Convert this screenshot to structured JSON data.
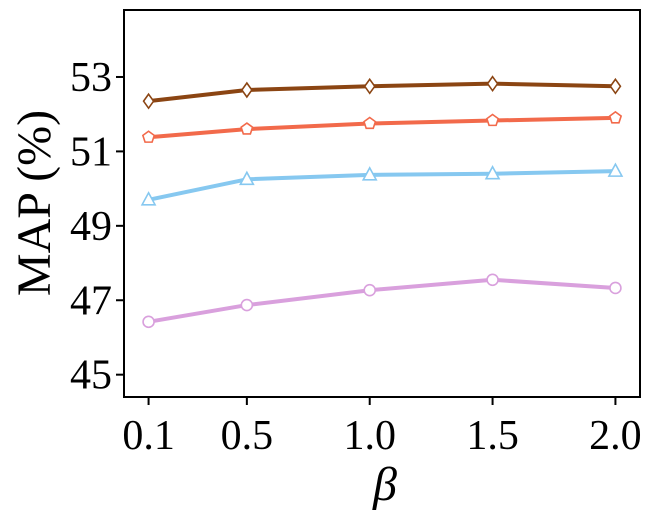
{
  "chart_data": {
    "type": "line",
    "xlabel": "β",
    "ylabel": "MAP (%)",
    "x": [
      0.1,
      0.5,
      1.0,
      1.5,
      2.0
    ],
    "x_tick_labels": [
      "0.1",
      "0.5",
      "1.0",
      "1.5",
      "2.0"
    ],
    "ylim": [
      44.4,
      54.8
    ],
    "y_ticks": [
      45,
      47,
      49,
      51,
      53
    ],
    "y_tick_labels": [
      "45",
      "47",
      "49",
      "51",
      "53"
    ],
    "grid": false,
    "series": [
      {
        "color": "#8B4513",
        "marker": "diamond",
        "values": [
          52.35,
          52.65,
          52.75,
          52.82,
          52.75
        ]
      },
      {
        "color": "#F26A4B",
        "marker": "pentagon",
        "values": [
          51.38,
          51.6,
          51.75,
          51.83,
          51.9
        ]
      },
      {
        "color": "#86C8F0",
        "marker": "triangle",
        "values": [
          49.7,
          50.25,
          50.37,
          50.4,
          50.47
        ]
      },
      {
        "color": "#D9A0DD",
        "marker": "circle",
        "values": [
          46.42,
          46.87,
          47.27,
          47.55,
          47.33
        ]
      }
    ]
  }
}
